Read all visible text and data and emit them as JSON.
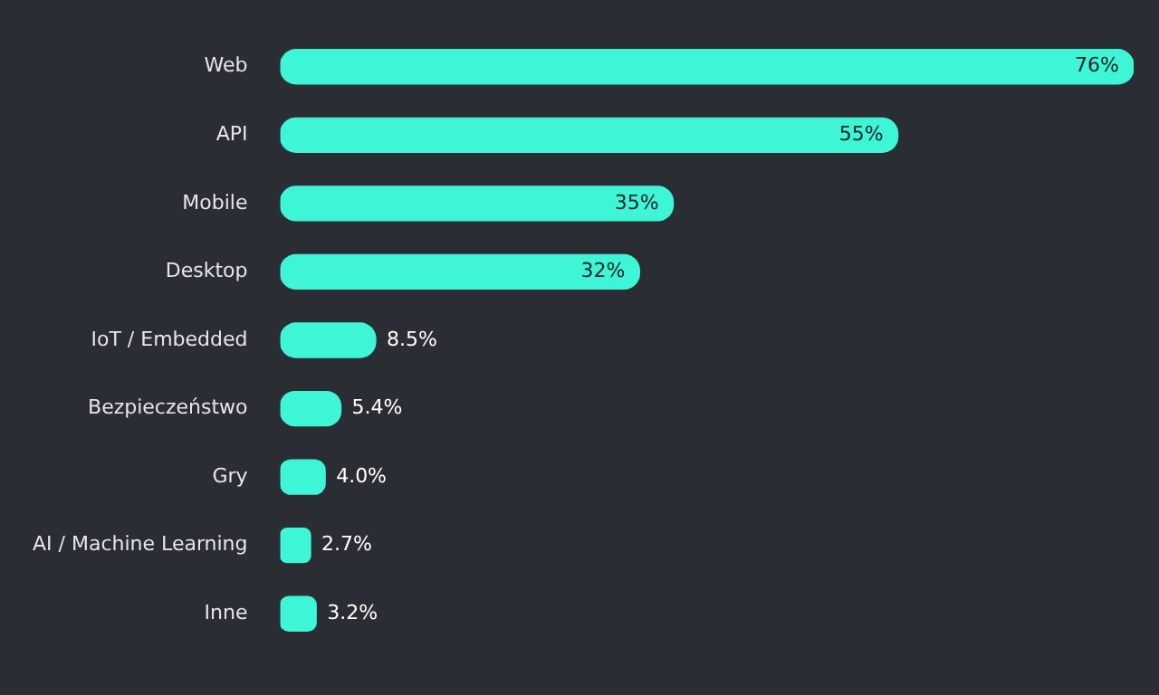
{
  "chart_data": {
    "type": "bar",
    "orientation": "horizontal",
    "categories": [
      "Web",
      "API",
      "Mobile",
      "Desktop",
      "IoT / Embedded",
      "Bezpieczeństwo",
      "Gry",
      "AI / Machine Learning",
      "Inne"
    ],
    "values": [
      76,
      55,
      35,
      32,
      8.5,
      5.4,
      4.0,
      2.7,
      3.2
    ],
    "value_labels": [
      "76%",
      "55%",
      "35%",
      "32%",
      "8.5%",
      "5.4%",
      "4.0%",
      "2.7%",
      "3.2%"
    ],
    "color": "#3ef5d6",
    "grid": false,
    "legend": false
  }
}
